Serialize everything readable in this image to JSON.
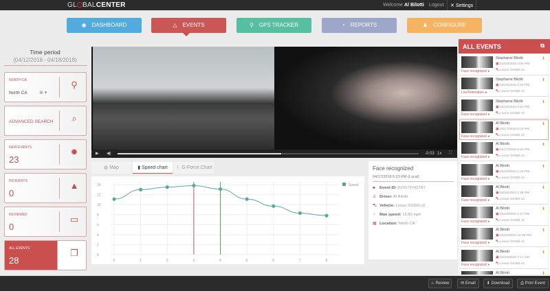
{
  "header": {
    "logo_pre": "GL",
    "logo_mid": "BAL",
    "logo_bold": "CENTER",
    "welcome": "Welcome",
    "user": "Al Bilotti",
    "logout": "Logout",
    "settings": "Settings"
  },
  "nav": [
    {
      "label": "DASHBOARD",
      "icon": "dashboard-icon",
      "color": "#4aa8df"
    },
    {
      "label": "EVENTS",
      "icon": "warning-icon",
      "color": "#c9504f"
    },
    {
      "label": "GPS TRACKER",
      "icon": "map-pin-icon",
      "color": "#4dbd9c"
    },
    {
      "label": "REPORTS",
      "icon": "pie-chart-icon",
      "color": "#9aa3c9"
    },
    {
      "label": "CONFIGURE",
      "icon": "user-config-icon",
      "color": "#f7b15a"
    }
  ],
  "sidebar": {
    "time_period_label": "Time period",
    "time_period_value": "(04/12/2018 - 04/18/2018)",
    "region": {
      "label": "NORTH CA",
      "value": "North CA"
    },
    "advanced_search": "ADVANCED SEARCH",
    "cards": [
      {
        "label": "NEW EVENTS",
        "value": "23"
      },
      {
        "label": "INCIDENTS",
        "value": "0"
      },
      {
        "label": "REVIEWED",
        "value": "0"
      },
      {
        "label": "ALL EVENTS",
        "value": "28"
      }
    ]
  },
  "video": {
    "time": "-0:03",
    "speed": "1x",
    "progress": 0.55
  },
  "tabs": [
    {
      "label": "Map"
    },
    {
      "label": "Speed chart"
    },
    {
      "label": "G-Force Chart"
    }
  ],
  "chart_data": {
    "type": "line",
    "x": [
      0,
      1,
      2,
      3,
      4,
      5,
      6,
      7,
      8
    ],
    "series": [
      {
        "name": "Speed",
        "values": [
          11.1,
          13.0,
          13.5,
          13.8,
          13.1,
          11.1,
          9.7,
          8.3,
          7.8
        ],
        "color": "#5ba89a"
      }
    ],
    "yticks": [
      0,
      2,
      4,
      6,
      8,
      10,
      12,
      14
    ],
    "ylim": [
      0,
      16
    ],
    "xlim": [
      0,
      8
    ],
    "markers": [
      {
        "x": 3,
        "color": "#d9534f"
      },
      {
        "x": 4,
        "color": "#4caf50"
      }
    ],
    "grid": true,
    "legend": "top-right"
  },
  "info": {
    "title": "Face recognized",
    "datetime": "04/17/2018 5:23 PM (Local)",
    "rows": [
      {
        "key": "Event ID:",
        "value": "8V01757427A7"
      },
      {
        "key": "Driver:",
        "value": "Al Bilotti"
      },
      {
        "key": "Vehicle:",
        "value": "Lexus GS350 v2"
      },
      {
        "key": "Max speed:",
        "value": "13.80 mph"
      },
      {
        "key": "Location:",
        "value": "North CA"
      }
    ]
  },
  "events_panel": {
    "title": "ALL EVENTS",
    "items": [
      {
        "name": "Stephanie Bilotti",
        "date": "04/18/2018 4:05 PM",
        "vehicle": "Lexus GS350 v2",
        "type": "Face recognized"
      },
      {
        "name": "Stephanie Bilotti",
        "date": "04/18/2018 3:16 PM",
        "vehicle": "Lexus GS350 v2",
        "type": "LiveTelematics"
      },
      {
        "name": "Stephanie Bilotti",
        "date": "04/18/2018 3:10 PM",
        "vehicle": "Lexus GS350 v2",
        "type": "Face recognized"
      },
      {
        "name": "Al Bilotti",
        "date": "04/17/2018 5:23 PM",
        "vehicle": "Lexus GS350 v2",
        "type": "Face recognized",
        "selected": true
      },
      {
        "name": "Al Bilotti",
        "date": "04/17/2018 5:16 PM",
        "vehicle": "Lexus GS350 v2",
        "type": "Face recognized"
      },
      {
        "name": "Al Bilotti",
        "date": "04/15/2018 1:45 PM",
        "vehicle": "Lexus GS350 v2",
        "type": "Face recognized"
      },
      {
        "name": "Al Bilotti",
        "date": "04/15/2018 1:28 PM",
        "vehicle": "Lexus GS350 v2",
        "type": "Face recognized"
      },
      {
        "name": "Al Bilotti",
        "date": "04/15/2018 1:17 PM",
        "vehicle": "Lexus GS350 v2",
        "type": "Face recognized"
      },
      {
        "name": "Al Bilotti",
        "date": "04/15/2018 12:29 PM",
        "vehicle": "Lexus GS350 v2",
        "type": "Face recognized"
      },
      {
        "name": "Al Bilotti",
        "date": "04/15/2018 7:17 AM",
        "vehicle": "Lexus GS350 v2",
        "type": "Face recognized"
      },
      {
        "name": "Al Bilotti",
        "date": "",
        "vehicle": "",
        "type": ""
      }
    ]
  },
  "footer": {
    "review": "Review",
    "email": "Email",
    "download": "Download",
    "print": "Print Event"
  }
}
